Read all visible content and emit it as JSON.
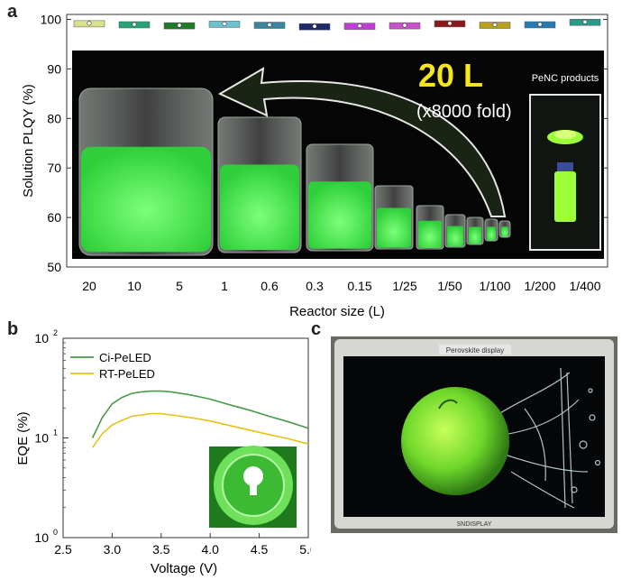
{
  "panels": {
    "a": "a",
    "b": "b",
    "c": "c"
  },
  "chart_data": [
    {
      "type": "scatter",
      "title": "",
      "xlabel": "Reactor size (L)",
      "ylabel": "Solution PLQY (%)",
      "categories": [
        "20",
        "10",
        "5",
        "1",
        "0.6",
        "0.3",
        "0.15",
        "1/25",
        "1/50",
        "1/100",
        "1/200",
        "1/400"
      ],
      "values": [
        99.2,
        99.0,
        98.8,
        99.1,
        98.9,
        98.6,
        98.7,
        98.8,
        99.2,
        98.9,
        99.0,
        99.5
      ],
      "bar_colors": [
        "#d8e28a",
        "#2aa07a",
        "#1f7a2a",
        "#6cc0d0",
        "#3a86a0",
        "#1c2a6a",
        "#c43cd8",
        "#c850c8",
        "#8a1a1a",
        "#b8a020",
        "#2a7ab0",
        "#2a9a8a"
      ],
      "yticks": [
        50,
        60,
        70,
        80,
        90,
        100
      ],
      "ylim": [
        50,
        101
      ],
      "annotations": {
        "scale_big": "20 L",
        "scale_fold": "(x8000 fold)",
        "inset_label": "PeNC products"
      }
    },
    {
      "type": "line",
      "title": "",
      "xlabel": "Voltage (V)",
      "ylabel": "EQE (%)",
      "yscale": "log",
      "xlim": [
        2.5,
        5.0
      ],
      "ylim": [
        1,
        100
      ],
      "xticks": [
        "2.5",
        "3.0",
        "3.5",
        "4.0",
        "4.5",
        "5.0"
      ],
      "yticks": [
        {
          "base": "10",
          "exp": "0"
        },
        {
          "base": "10",
          "exp": "1"
        },
        {
          "base": "10",
          "exp": "2"
        }
      ],
      "legend": "top-left",
      "series": [
        {
          "name": "Ci-PeLED",
          "color": "#4a9a4a",
          "x": [
            2.8,
            2.9,
            3.0,
            3.1,
            3.2,
            3.3,
            3.4,
            3.5,
            3.6,
            3.8,
            4.0,
            4.2,
            4.4,
            4.6,
            4.8,
            5.0
          ],
          "y": [
            10,
            16,
            22,
            25.5,
            28,
            29,
            29.5,
            29.5,
            29,
            27,
            24.5,
            21.5,
            19,
            16.5,
            14.5,
            12.5
          ]
        },
        {
          "name": "RT-PeLED",
          "color": "#e6c21a",
          "x": [
            2.8,
            2.9,
            3.0,
            3.1,
            3.2,
            3.3,
            3.4,
            3.5,
            3.6,
            3.8,
            4.0,
            4.2,
            4.4,
            4.6,
            4.8,
            5.0
          ],
          "y": [
            8,
            11,
            13.5,
            15,
            16.5,
            17,
            17.5,
            17.5,
            17,
            16,
            14.8,
            13.3,
            12,
            10.8,
            9.8,
            8.7
          ]
        }
      ]
    }
  ],
  "display": {
    "top_label": "Perovskite display",
    "brand": "SNDISPLAY"
  }
}
